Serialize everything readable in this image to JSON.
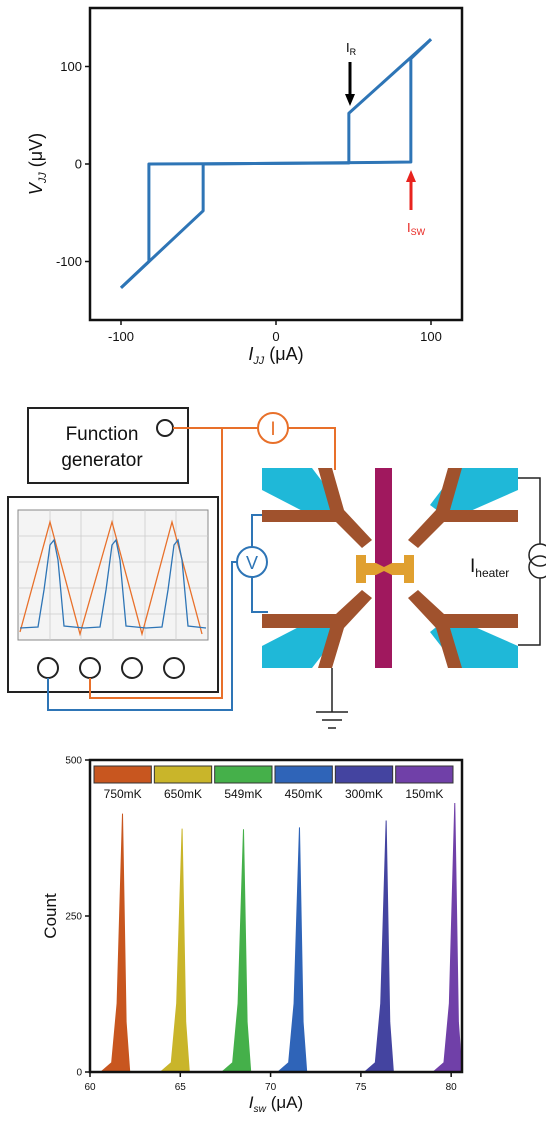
{
  "chart_data": [
    {
      "type": "line",
      "xlabel": {
        "main": "I",
        "sub": "JJ",
        "unit": "(μA)"
      },
      "ylabel": {
        "main": "V",
        "sub": "JJ",
        "unit": "(μV)"
      },
      "xlim": [
        -120,
        120
      ],
      "ylim": [
        -160,
        160
      ],
      "xticks": [
        -100,
        0,
        100
      ],
      "yticks": [
        -100,
        0,
        100
      ],
      "series": [
        {
          "color": "#2e75b6",
          "x": [
            -100,
            -47,
            -47,
            87,
            87,
            100
          ],
          "values": [
            -127,
            -48,
            0,
            2,
            108,
            128
          ]
        },
        {
          "color": "#2e75b6",
          "x": [
            100,
            47,
            47,
            -82,
            -82,
            -100
          ],
          "values": [
            128,
            52,
            1,
            0,
            -100,
            -127
          ]
        }
      ],
      "annotations": [
        {
          "text": "I",
          "sub": "R",
          "color": "#000000"
        },
        {
          "text": "I",
          "sub": "SW",
          "color": "#e8231e"
        }
      ]
    },
    {
      "type": "area",
      "xlabel": {
        "main": "I",
        "sub": "sw",
        "unit": "(μA)"
      },
      "ylabel": {
        "main": "Count"
      },
      "xlim": [
        60,
        80.6
      ],
      "ylim": [
        0,
        500
      ],
      "xticks": [
        60,
        65,
        70,
        75,
        80
      ],
      "yticks": [
        0,
        250,
        500
      ],
      "legend": "top",
      "series": [
        {
          "name": "750mK",
          "color": "#c8561f",
          "x": [
            60.6,
            61.2,
            61.5,
            61.8,
            62.0,
            62.2
          ],
          "values": [
            0,
            15,
            110,
            414,
            80,
            0
          ]
        },
        {
          "name": "650mK",
          "color": "#c9b52a",
          "x": [
            63.9,
            64.5,
            64.8,
            65.1,
            65.3,
            65.5
          ],
          "values": [
            0,
            15,
            110,
            390,
            80,
            0
          ]
        },
        {
          "name": "549mK",
          "color": "#45b04a",
          "x": [
            67.3,
            67.9,
            68.2,
            68.5,
            68.7,
            68.9
          ],
          "values": [
            0,
            15,
            110,
            389,
            80,
            0
          ]
        },
        {
          "name": "450mK",
          "color": "#2f64b8",
          "x": [
            70.4,
            71.0,
            71.3,
            71.6,
            71.8,
            72.0
          ],
          "values": [
            0,
            15,
            110,
            392,
            80,
            0
          ]
        },
        {
          "name": "300mK",
          "color": "#4444a0",
          "x": [
            75.2,
            75.8,
            76.1,
            76.4,
            76.6,
            76.8
          ],
          "values": [
            0,
            15,
            110,
            403,
            80,
            0
          ]
        },
        {
          "name": "150mK",
          "color": "#7040a8",
          "x": [
            79.0,
            79.6,
            79.9,
            80.2,
            80.4,
            80.6
          ],
          "values": [
            0,
            15,
            110,
            431,
            80,
            0
          ]
        }
      ]
    }
  ],
  "diagram": {
    "function_generator": [
      "Function",
      "generator"
    ],
    "current_meter": "I",
    "voltmeter": "V",
    "heater": {
      "text": "I",
      "sub": "heater"
    }
  }
}
